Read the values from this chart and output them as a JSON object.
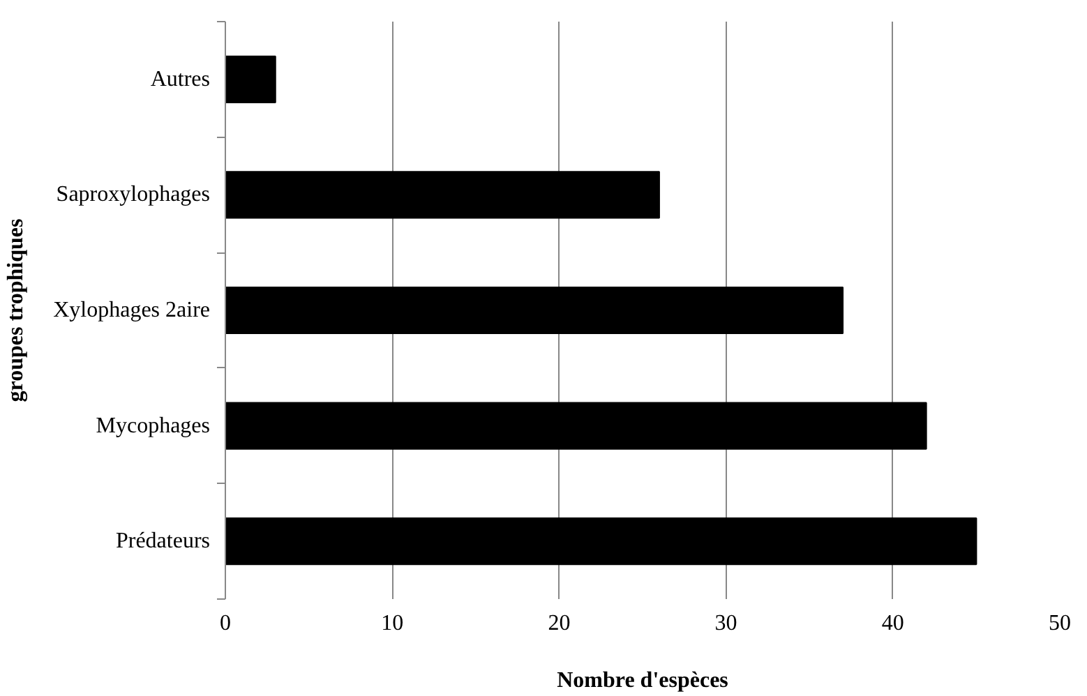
{
  "chart_data": {
    "type": "bar",
    "orientation": "horizontal",
    "xlabel": "Nombre d'espèces",
    "ylabel": "groupes trophiques",
    "categories": [
      "Autres",
      "Saproxylophages",
      "Xylophages 2aire",
      "Mycophages",
      "Prédateurs"
    ],
    "values": [
      3,
      26,
      37,
      42,
      45
    ],
    "color": "#000000",
    "xlim": [
      0,
      50
    ],
    "xticks": [
      0,
      10,
      20,
      30,
      40,
      50
    ],
    "grid": "x"
  }
}
